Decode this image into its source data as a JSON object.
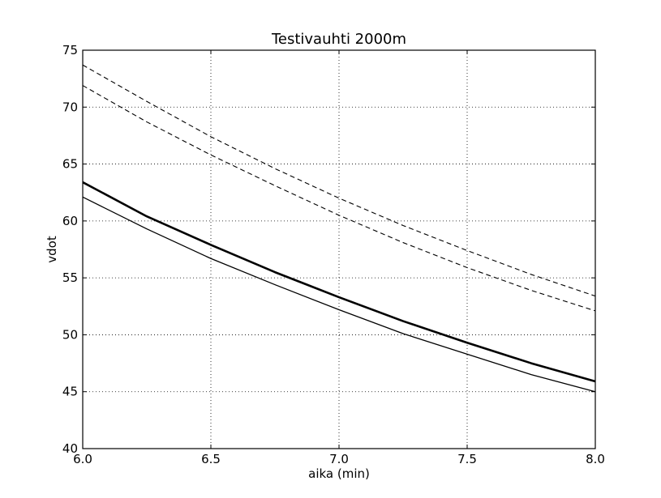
{
  "chart_data": {
    "type": "line",
    "title": "Testivauhti 2000m",
    "xlabel": "aika (min)",
    "ylabel": "vdot",
    "xlim": [
      6.0,
      8.0
    ],
    "ylim": [
      40,
      75
    ],
    "grid": true,
    "x_ticks": [
      "6.0",
      "6.5",
      "7.0",
      "7.5",
      "8.0"
    ],
    "y_ticks": [
      "40",
      "45",
      "50",
      "55",
      "60",
      "65",
      "70",
      "75"
    ],
    "x": [
      6.0,
      6.25,
      6.5,
      6.75,
      7.0,
      7.25,
      7.5,
      7.75,
      8.0
    ],
    "series": [
      {
        "style": "dashed",
        "values": [
          73.7,
          70.5,
          67.4,
          64.6,
          62.0,
          59.6,
          57.4,
          55.3,
          53.4
        ]
      },
      {
        "style": "dashed",
        "values": [
          71.9,
          68.7,
          65.8,
          63.1,
          60.5,
          58.1,
          55.9,
          53.9,
          52.1
        ]
      },
      {
        "style": "thick",
        "values": [
          63.4,
          60.4,
          57.9,
          55.5,
          53.3,
          51.2,
          49.3,
          47.5,
          45.9
        ]
      },
      {
        "style": "thin",
        "values": [
          62.1,
          59.3,
          56.7,
          54.4,
          52.2,
          50.1,
          48.3,
          46.5,
          45.0
        ]
      }
    ]
  }
}
